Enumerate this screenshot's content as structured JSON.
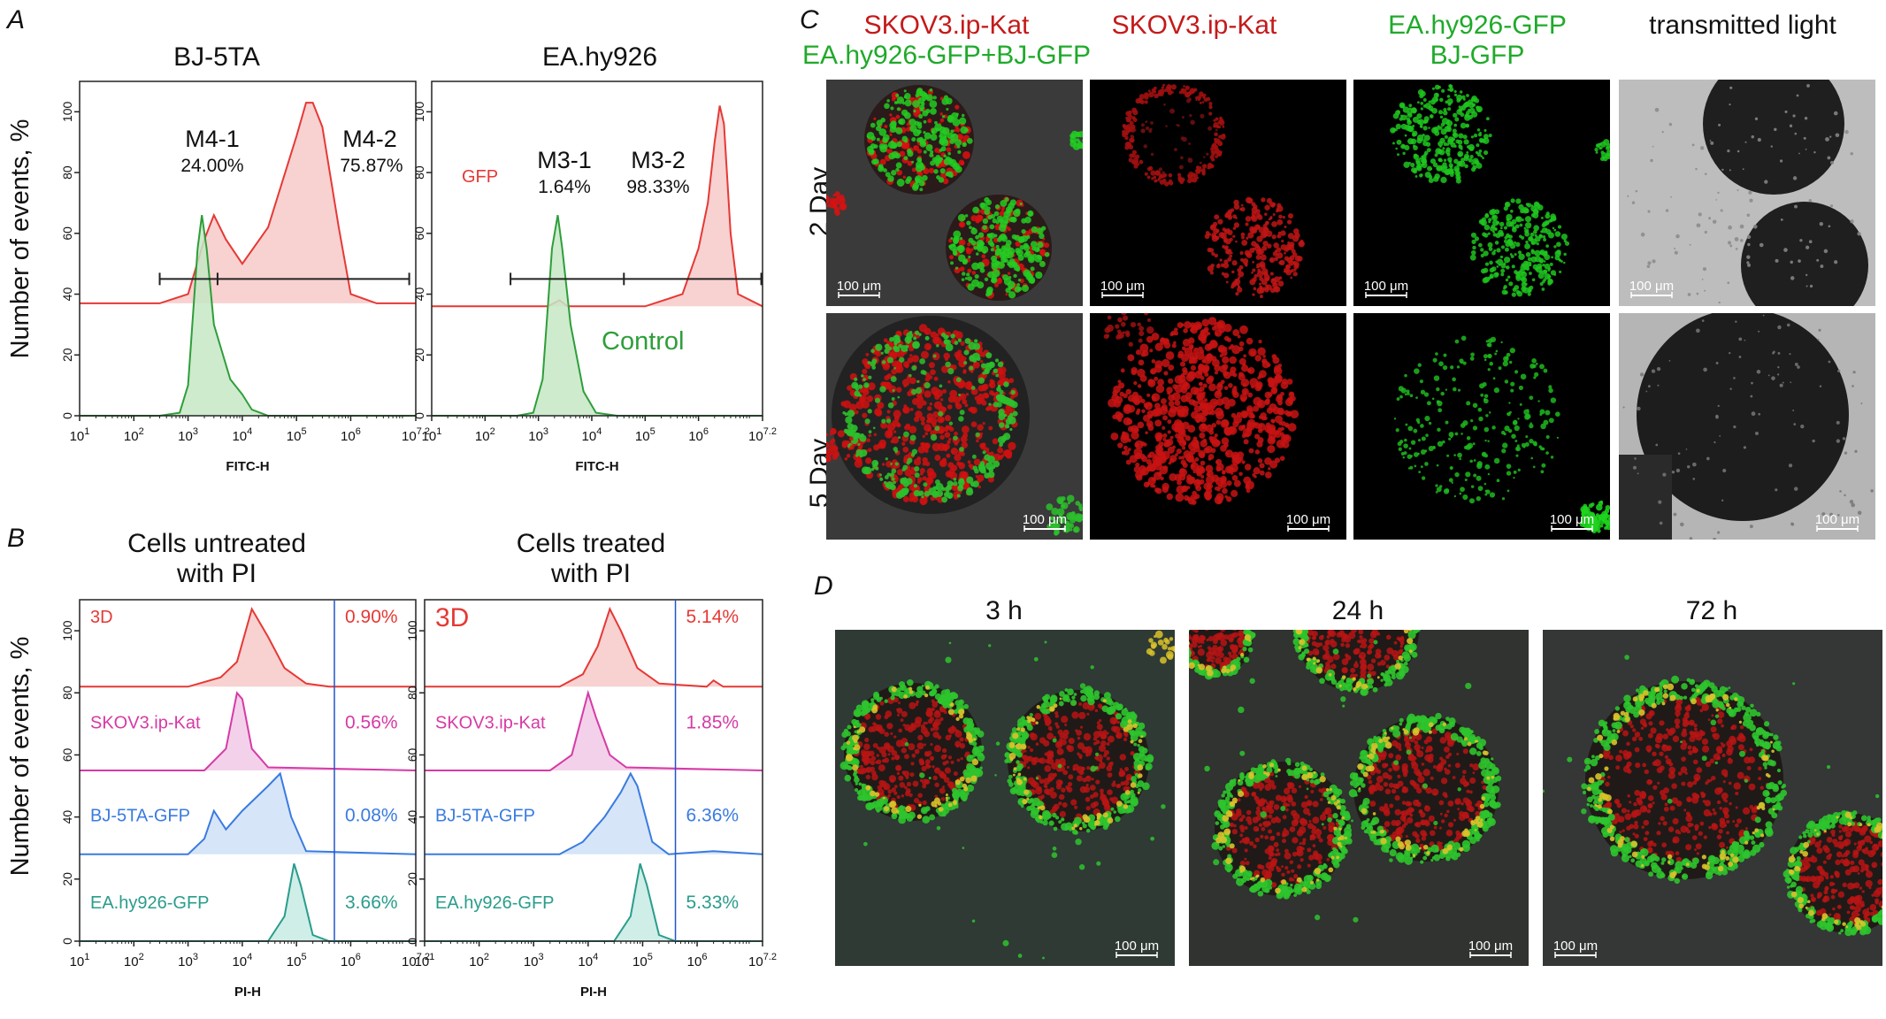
{
  "colors": {
    "red": "#e53935",
    "red_fill": "#f7c9c9",
    "green": "#2e9e3a",
    "green_fill": "#c6e8c6",
    "magenta": "#d63aa5",
    "magenta_fill": "#f2c9e6",
    "blue": "#3a7be0",
    "blue_fill": "#cfe0f7",
    "teal": "#2a9c8c",
    "teal_fill": "#c6ebe3",
    "axis": "#222222",
    "vline": "#2255cc"
  },
  "panels": {
    "A": "A",
    "B": "B",
    "C": "C",
    "D": "D"
  },
  "common": {
    "y_axis_label": "Number of events, %",
    "y_ticks": [
      "0",
      "20",
      "40",
      "60",
      "80",
      "100"
    ],
    "x_ticks": [
      "10",
      "10",
      "10",
      "10",
      "10",
      "10",
      "10"
    ],
    "x_tick_exps": [
      "1",
      "2",
      "3",
      "4",
      "5",
      "6",
      "7.2"
    ]
  },
  "panel_a": {
    "left": {
      "title": "BJ-5TA",
      "xlabel": "FITC-H",
      "gates": [
        {
          "name": "M4-1",
          "pct": "24.00%"
        },
        {
          "name": "M4-2",
          "pct": "75.87%"
        }
      ]
    },
    "right": {
      "title": "EA.hy926",
      "xlabel": "FITC-H",
      "gfp_label": "GFP",
      "control_label": "Control",
      "gates": [
        {
          "name": "M3-1",
          "pct": "1.64%"
        },
        {
          "name": "M3-2",
          "pct": "98.33%"
        }
      ]
    }
  },
  "panel_b": {
    "left": {
      "title_line1": "Cells untreated",
      "title_line2": "with PI",
      "xlabel": "PI-H",
      "rows": [
        {
          "name": "3D",
          "pct": "0.90%"
        },
        {
          "name": "SKOV3.ip-Kat",
          "pct": "0.56%"
        },
        {
          "name": "BJ-5TA-GFP",
          "pct": "0.08%"
        },
        {
          "name": "EA.hy926-GFP",
          "pct": "3.66%"
        }
      ]
    },
    "right": {
      "title_line1": "Cells treated",
      "title_line2": "with PI",
      "xlabel": "PI-H",
      "rows": [
        {
          "name": "3D",
          "pct": "5.14%"
        },
        {
          "name": "SKOV3.ip-Kat",
          "pct": "1.85%"
        },
        {
          "name": "BJ-5TA-GFP",
          "pct": "6.36%"
        },
        {
          "name": "EA.hy926-GFP",
          "pct": "5.33%"
        }
      ]
    }
  },
  "panel_c": {
    "col1_line1": "SKOV3.ip-Kat",
    "col1_line2": "EA.hy926-GFP+BJ-GFP",
    "col2": "SKOV3.ip-Kat",
    "col3_line1": "EA.hy926-GFP",
    "col3_line2": "BJ-GFP",
    "col4": "transmitted light",
    "row1": "2 Day",
    "row2": "5 Day",
    "scale": "100 μm"
  },
  "panel_d": {
    "t1": "3 h",
    "t2": "24 h",
    "t3": "72 h",
    "scale": "100 μm"
  },
  "chart_data": [
    {
      "type": "area",
      "title": "BJ-5TA",
      "xlabel": "FITC-H",
      "ylabel": "Number of events, %",
      "x_scale": "log",
      "xlim": [
        10,
        15848932
      ],
      "ylim": [
        0,
        110
      ],
      "series": [
        {
          "points": [
            [
              10,
              37
            ],
            [
              100,
              37
            ],
            [
              300,
              37
            ],
            [
              1000,
              40
            ],
            [
              2000,
              58
            ],
            [
              3000,
              66
            ],
            [
              5000,
              58
            ],
            [
              10000,
              50
            ],
            [
              30000,
              62
            ],
            [
              100000,
              92
            ],
            [
              150000,
              103
            ],
            [
              200000,
              103
            ],
            [
              300000,
              95
            ],
            [
              600000,
              62
            ],
            [
              1000000,
              40
            ],
            [
              3000000,
              37
            ],
            [
              15848932,
              37
            ]
          ]
        },
        {
          "points": [
            [
              10,
              0
            ],
            [
              300,
              0
            ],
            [
              700,
              1
            ],
            [
              1000,
              10
            ],
            [
              1500,
              55
            ],
            [
              1800,
              66
            ],
            [
              2200,
              55
            ],
            [
              3000,
              30
            ],
            [
              6000,
              12
            ],
            [
              10000,
              7
            ],
            [
              15000,
              2
            ],
            [
              30000,
              0
            ],
            [
              15848932,
              0
            ]
          ]
        }
      ],
      "gates": [
        {
          "name": "M4-1",
          "pct": 24.0,
          "range": [
            300,
            3500
          ]
        },
        {
          "name": "M4-2",
          "pct": 75.87,
          "range": [
            3500,
            12000000
          ]
        }
      ]
    },
    {
      "type": "area",
      "title": "EA.hy926",
      "xlabel": "FITC-H",
      "ylabel": "Number of events, %",
      "x_scale": "log",
      "xlim": [
        10,
        15848932
      ],
      "ylim": [
        0,
        110
      ],
      "series": [
        {
          "name": "GFP",
          "points": [
            [
              10,
              36
            ],
            [
              100,
              36
            ],
            [
              1500,
              36
            ],
            [
              2500,
              38
            ],
            [
              3500,
              36
            ],
            [
              100000,
              36
            ],
            [
              500000,
              40
            ],
            [
              1000000,
              55
            ],
            [
              1500000,
              70
            ],
            [
              2000000,
              90
            ],
            [
              2500000,
              102
            ],
            [
              3000000,
              96
            ],
            [
              4000000,
              60
            ],
            [
              5500000,
              40
            ],
            [
              15848932,
              36
            ]
          ]
        },
        {
          "name": "Control",
          "points": [
            [
              10,
              0
            ],
            [
              400,
              0
            ],
            [
              800,
              1
            ],
            [
              1200,
              12
            ],
            [
              1800,
              55
            ],
            [
              2300,
              66
            ],
            [
              2800,
              55
            ],
            [
              4000,
              30
            ],
            [
              7000,
              8
            ],
            [
              12000,
              1
            ],
            [
              30000,
              0
            ],
            [
              15848932,
              0
            ]
          ]
        }
      ],
      "gates": [
        {
          "name": "M3-1",
          "pct": 1.64,
          "range": [
            300,
            40000
          ]
        },
        {
          "name": "M3-2",
          "pct": 98.33,
          "range": [
            40000,
            15000000
          ]
        }
      ]
    },
    {
      "type": "area",
      "title": "Cells untreated with PI",
      "xlabel": "PI-H",
      "ylabel": "Number of events, %",
      "x_scale": "log",
      "xlim": [
        10,
        15848932
      ],
      "ylim": [
        0,
        110
      ],
      "series": [
        {
          "name": "3D",
          "points": [
            [
              10,
              82
            ],
            [
              1000,
              82
            ],
            [
              4000,
              85
            ],
            [
              8000,
              90
            ],
            [
              15000,
              107
            ],
            [
              30000,
              98
            ],
            [
              60000,
              88
            ],
            [
              150000,
              83
            ],
            [
              400000,
              82
            ],
            [
              15848932,
              82
            ]
          ]
        },
        {
          "name": "SKOV3.ip-Kat",
          "points": [
            [
              10,
              55
            ],
            [
              2000,
              55
            ],
            [
              5000,
              62
            ],
            [
              8000,
              80
            ],
            [
              10000,
              78
            ],
            [
              15000,
              62
            ],
            [
              30000,
              56
            ],
            [
              15848932,
              55
            ]
          ]
        },
        {
          "name": "BJ-5TA-GFP",
          "points": [
            [
              10,
              28
            ],
            [
              1000,
              28
            ],
            [
              2000,
              33
            ],
            [
              3000,
              42
            ],
            [
              5000,
              36
            ],
            [
              10000,
              42
            ],
            [
              30000,
              50
            ],
            [
              50000,
              54
            ],
            [
              80000,
              40
            ],
            [
              150000,
              29
            ],
            [
              15848932,
              28
            ]
          ]
        },
        {
          "name": "EA.hy926-GFP",
          "points": [
            [
              10,
              0
            ],
            [
              30000,
              0
            ],
            [
              60000,
              8
            ],
            [
              90000,
              25
            ],
            [
              120000,
              18
            ],
            [
              200000,
              2
            ],
            [
              400000,
              0
            ],
            [
              15848932,
              0
            ]
          ]
        }
      ],
      "gate_x": 500000,
      "pcts": {
        "3D": 0.9,
        "SKOV3.ip-Kat": 0.56,
        "BJ-5TA-GFP": 0.08,
        "EA.hy926-GFP": 3.66
      }
    },
    {
      "type": "area",
      "title": "Cells treated with PI",
      "xlabel": "PI-H",
      "ylabel": "Number of events, %",
      "x_scale": "log",
      "xlim": [
        10,
        15848932
      ],
      "ylim": [
        0,
        110
      ],
      "series": [
        {
          "name": "3D",
          "points": [
            [
              10,
              82
            ],
            [
              3000,
              82
            ],
            [
              8000,
              86
            ],
            [
              15000,
              95
            ],
            [
              25000,
              107
            ],
            [
              40000,
              100
            ],
            [
              80000,
              88
            ],
            [
              200000,
              83
            ],
            [
              1500000,
              82
            ],
            [
              2000000,
              84
            ],
            [
              3000000,
              82
            ],
            [
              15848932,
              82
            ]
          ]
        },
        {
          "name": "SKOV3.ip-Kat",
          "points": [
            [
              10,
              55
            ],
            [
              2000,
              55
            ],
            [
              5000,
              60
            ],
            [
              10000,
              80
            ],
            [
              14000,
              72
            ],
            [
              25000,
              60
            ],
            [
              50000,
              56
            ],
            [
              15848932,
              55
            ]
          ]
        },
        {
          "name": "BJ-5TA-GFP",
          "points": [
            [
              10,
              28
            ],
            [
              3000,
              28
            ],
            [
              8000,
              32
            ],
            [
              20000,
              40
            ],
            [
              40000,
              48
            ],
            [
              60000,
              54
            ],
            [
              80000,
              50
            ],
            [
              150000,
              32
            ],
            [
              300000,
              28
            ],
            [
              2000000,
              29
            ],
            [
              15848932,
              28
            ]
          ]
        },
        {
          "name": "EA.hy926-GFP",
          "points": [
            [
              10,
              0
            ],
            [
              30000,
              0
            ],
            [
              60000,
              8
            ],
            [
              90000,
              25
            ],
            [
              120000,
              18
            ],
            [
              200000,
              2
            ],
            [
              400000,
              0
            ],
            [
              15848932,
              0
            ]
          ]
        }
      ],
      "gate_x": 400000,
      "pcts": {
        "3D": 5.14,
        "SKOV3.ip-Kat": 1.85,
        "BJ-5TA-GFP": 6.36,
        "EA.hy926-GFP": 5.33
      }
    }
  ]
}
